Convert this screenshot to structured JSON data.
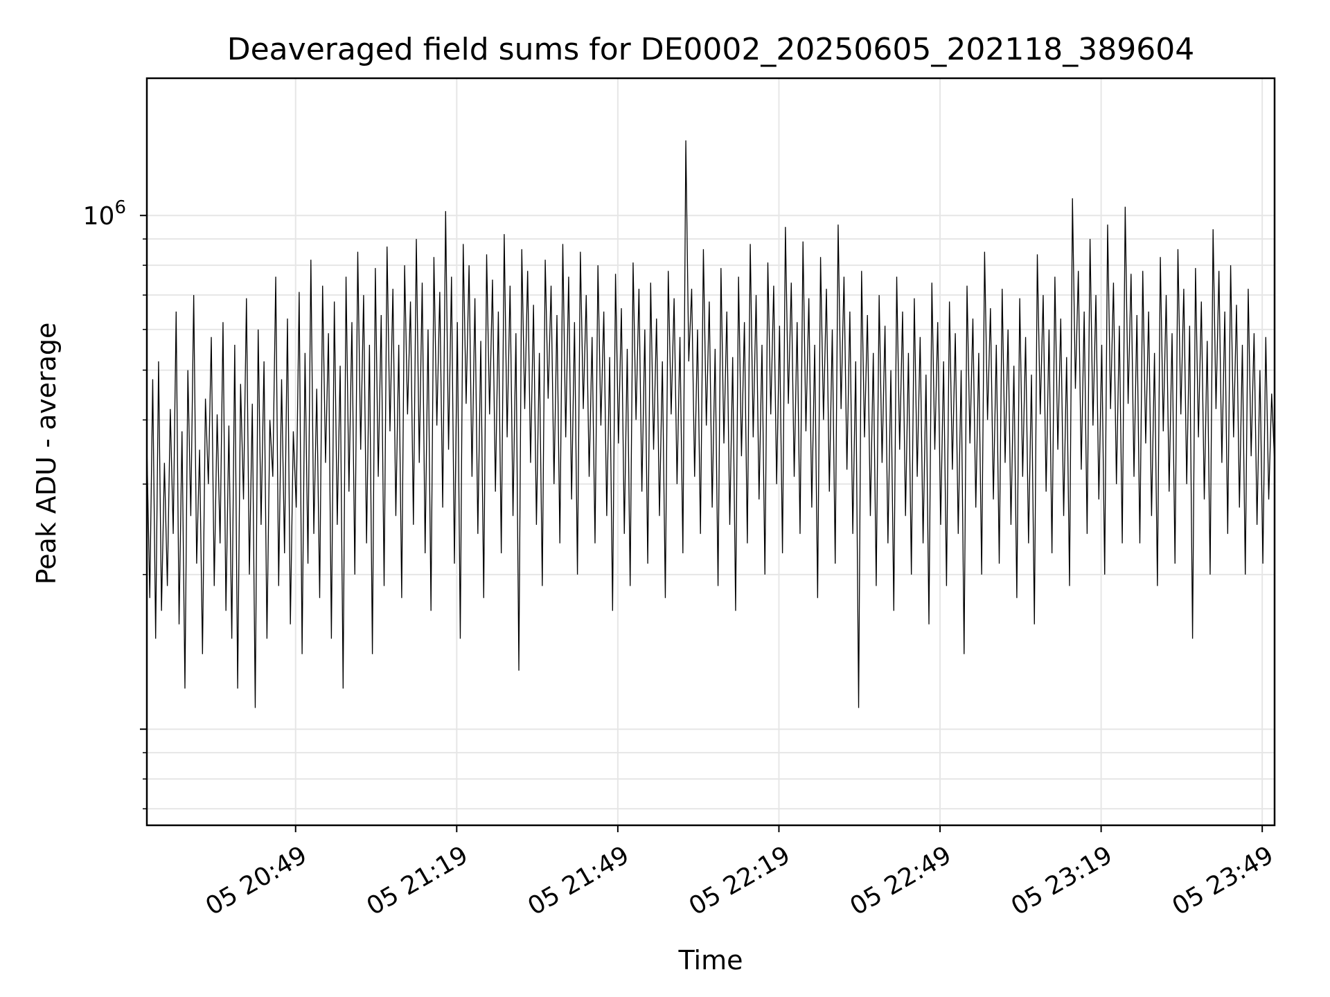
{
  "chart_data": {
    "type": "line",
    "title": "Deaveraged field sums for DE0002_20250605_202118_389604",
    "xlabel": "Time",
    "ylabel": "Peak ADU - average",
    "x_range": [
      "2025-06-05 20:21:18",
      "2025-06-05 23:51:18"
    ],
    "y_scale": "log",
    "ylim": [
      65000,
      1850000
    ],
    "x_ticks": [
      {
        "value": "2025-06-05 20:49",
        "label": "05 20:49"
      },
      {
        "value": "2025-06-05 21:19",
        "label": "05 21:19"
      },
      {
        "value": "2025-06-05 21:49",
        "label": "05 21:49"
      },
      {
        "value": "2025-06-05 22:19",
        "label": "05 22:19"
      },
      {
        "value": "2025-06-05 22:49",
        "label": "05 22:49"
      },
      {
        "value": "2025-06-05 23:19",
        "label": "05 23:19"
      },
      {
        "value": "2025-06-05 23:49",
        "label": "05 23:49"
      }
    ],
    "y_ticks": [
      {
        "value": 1000000,
        "base": "10",
        "exponent": "6"
      }
    ],
    "grid": true,
    "line_color": "#000000",
    "grid_color": "#e6e6e6",
    "series": [
      {
        "x_start": "2025-06-05 20:21:18",
        "x_end": "2025-06-05 23:51:18",
        "values": [
          360000,
          180000,
          480000,
          150000,
          520000,
          170000,
          330000,
          190000,
          420000,
          240000,
          650000,
          160000,
          380000,
          120000,
          500000,
          260000,
          700000,
          210000,
          350000,
          140000,
          440000,
          300000,
          580000,
          190000,
          410000,
          230000,
          620000,
          170000,
          390000,
          150000,
          560000,
          120000,
          470000,
          280000,
          690000,
          200000,
          430000,
          110000,
          600000,
          250000,
          520000,
          150000,
          400000,
          310000,
          760000,
          190000,
          480000,
          220000,
          630000,
          160000,
          380000,
          270000,
          710000,
          140000,
          540000,
          210000,
          820000,
          240000,
          460000,
          180000,
          730000,
          330000,
          590000,
          150000,
          680000,
          250000,
          510000,
          120000,
          760000,
          290000,
          620000,
          200000,
          850000,
          350000,
          700000,
          230000,
          560000,
          140000,
          790000,
          310000,
          640000,
          190000,
          870000,
          380000,
          720000,
          260000,
          560000,
          180000,
          800000,
          410000,
          680000,
          250000,
          900000,
          330000,
          740000,
          220000,
          600000,
          170000,
          830000,
          390000,
          710000,
          270000,
          1020000,
          350000,
          760000,
          210000,
          620000,
          150000,
          880000,
          430000,
          800000,
          310000,
          690000,
          240000,
          570000,
          180000,
          840000,
          410000,
          750000,
          290000,
          650000,
          220000,
          920000,
          370000,
          730000,
          260000,
          590000,
          130000,
          860000,
          420000,
          780000,
          330000,
          670000,
          250000,
          540000,
          190000,
          820000,
          440000,
          730000,
          300000,
          640000,
          230000,
          880000,
          370000,
          760000,
          280000,
          620000,
          200000,
          850000,
          420000,
          700000,
          310000,
          580000,
          230000,
          800000,
          390000,
          650000,
          260000,
          530000,
          170000,
          770000,
          360000,
          660000,
          240000,
          550000,
          190000,
          810000,
          400000,
          720000,
          290000,
          600000,
          210000,
          740000,
          350000,
          630000,
          260000,
          520000,
          180000,
          780000,
          410000,
          690000,
          300000,
          580000,
          220000,
          1400000,
          520000,
          720000,
          310000,
          600000,
          240000,
          860000,
          390000,
          680000,
          270000,
          550000,
          190000,
          790000,
          360000,
          650000,
          250000,
          530000,
          170000,
          760000,
          340000,
          620000,
          230000,
          880000,
          370000,
          700000,
          280000,
          560000,
          200000,
          810000,
          410000,
          730000,
          300000,
          610000,
          220000,
          950000,
          430000,
          740000,
          310000,
          620000,
          240000,
          890000,
          380000,
          690000,
          270000,
          560000,
          180000,
          830000,
          400000,
          720000,
          290000,
          600000,
          210000,
          960000,
          420000,
          760000,
          320000,
          650000,
          240000,
          520000,
          110000,
          780000,
          370000,
          640000,
          260000,
          540000,
          190000,
          700000,
          330000,
          610000,
          230000,
          500000,
          170000,
          760000,
          350000,
          650000,
          260000,
          540000,
          200000,
          690000,
          310000,
          580000,
          230000,
          490000,
          160000,
          740000,
          350000,
          620000,
          250000,
          520000,
          190000,
          680000,
          320000,
          590000,
          240000,
          500000,
          140000,
          730000,
          360000,
          630000,
          270000,
          540000,
          200000,
          850000,
          400000,
          660000,
          280000,
          560000,
          210000,
          720000,
          330000,
          600000,
          250000,
          510000,
          180000,
          690000,
          310000,
          580000,
          230000,
          490000,
          160000,
          840000,
          410000,
          700000,
          290000,
          600000,
          220000,
          760000,
          350000,
          630000,
          260000,
          530000,
          190000,
          1080000,
          460000,
          780000,
          320000,
          650000,
          240000,
          900000,
          390000,
          700000,
          280000,
          560000,
          200000,
          960000,
          420000,
          740000,
          300000,
          610000,
          230000,
          1040000,
          430000,
          770000,
          310000,
          640000,
          230000,
          780000,
          360000,
          650000,
          260000,
          540000,
          190000,
          830000,
          380000,
          700000,
          290000,
          590000,
          210000,
          860000,
          410000,
          720000,
          300000,
          610000,
          150000,
          790000,
          370000,
          680000,
          280000,
          570000,
          200000,
          940000,
          420000,
          780000,
          330000,
          650000,
          240000,
          800000,
          370000,
          670000,
          270000,
          560000,
          200000,
          720000,
          340000,
          590000,
          250000,
          500000,
          210000,
          580000,
          280000,
          450000,
          330000
        ]
      }
    ]
  }
}
